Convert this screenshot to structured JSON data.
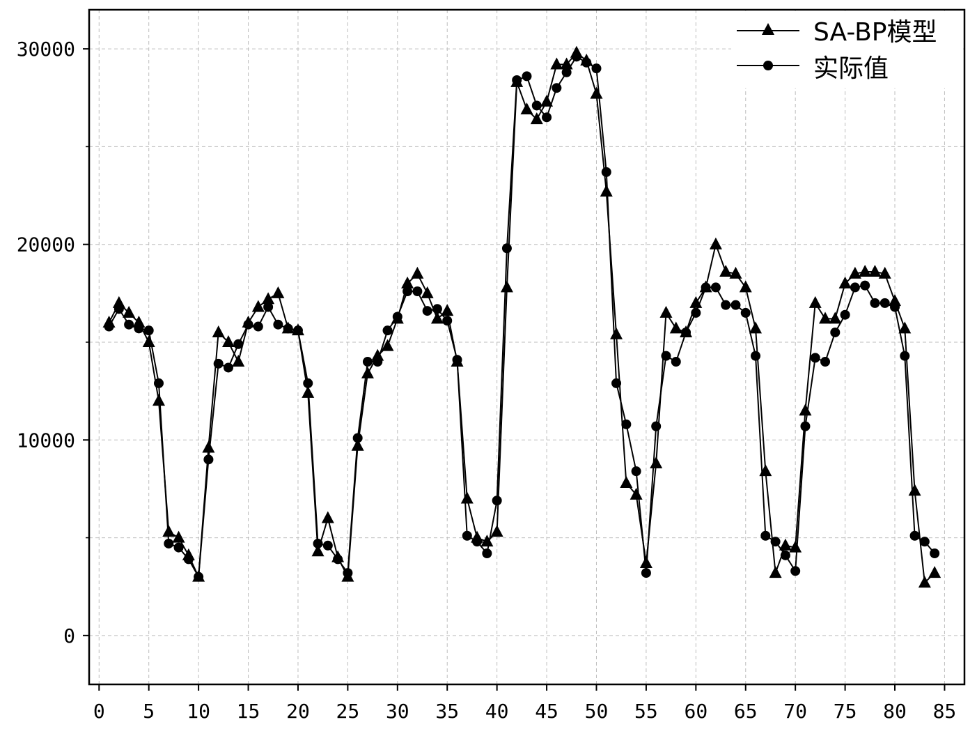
{
  "chart_data": {
    "type": "line",
    "title": "",
    "xlabel": "",
    "ylabel": "",
    "xlim": [
      -1,
      87
    ],
    "ylim": [
      -2500,
      32000
    ],
    "grid": true,
    "legend_position": "top-right",
    "x_ticks": [
      0,
      5,
      10,
      15,
      20,
      25,
      30,
      35,
      40,
      45,
      50,
      55,
      60,
      65,
      70,
      75,
      80,
      85
    ],
    "x_tick_labels": [
      "0",
      "5",
      "10",
      "15",
      "20",
      "25",
      "30",
      "35",
      "40",
      "45",
      "50",
      "55",
      "60",
      "65",
      "70",
      "75",
      "80",
      "85"
    ],
    "y_ticks": [
      0,
      10000,
      20000,
      30000
    ],
    "y_tick_labels": [
      "0",
      "10000",
      "20000",
      "30000"
    ],
    "y_minor_ticks": [
      5000,
      15000,
      25000
    ],
    "x": [
      1,
      2,
      3,
      4,
      5,
      6,
      7,
      8,
      9,
      10,
      11,
      12,
      13,
      14,
      15,
      16,
      17,
      18,
      19,
      20,
      21,
      22,
      23,
      24,
      25,
      26,
      27,
      28,
      29,
      30,
      31,
      32,
      33,
      34,
      35,
      36,
      37,
      38,
      39,
      40,
      41,
      42,
      43,
      44,
      45,
      46,
      47,
      48,
      49,
      50,
      51,
      52,
      53,
      54,
      55,
      56,
      57,
      58,
      59,
      60,
      61,
      62,
      63,
      64,
      65,
      66,
      67,
      68,
      69,
      70,
      71,
      72,
      73,
      74,
      75,
      76,
      77,
      78,
      79,
      80,
      81,
      82,
      83,
      84
    ],
    "series": [
      {
        "name": "SA-BP模型",
        "marker": "triangle",
        "color": "#000000",
        "values": [
          16000,
          17000,
          16500,
          16000,
          15000,
          12000,
          5300,
          5000,
          4100,
          3000,
          9600,
          15500,
          15000,
          14000,
          16000,
          16800,
          17200,
          17500,
          15700,
          15600,
          12400,
          4300,
          6000,
          4000,
          3000,
          9700,
          13400,
          14300,
          14800,
          16200,
          18000,
          18500,
          17500,
          16200,
          16600,
          14000,
          7000,
          5000,
          4800,
          5300,
          17800,
          28300,
          26900,
          26400,
          27300,
          29200,
          29200,
          29800,
          29400,
          27700,
          22700,
          15400,
          7800,
          7200,
          3700,
          8800,
          16500,
          15700,
          15500,
          17000,
          17800,
          20000,
          18600,
          18500,
          17800,
          15700,
          8400,
          3200,
          4600,
          4500,
          11500,
          17000,
          16200,
          16200,
          18000,
          18500,
          18600,
          18600,
          18500,
          17100,
          15700,
          7400,
          2700,
          3200
        ]
      },
      {
        "name": "实际值",
        "marker": "circle",
        "color": "#000000",
        "values": [
          15800,
          16700,
          15900,
          15700,
          15600,
          12900,
          4700,
          4500,
          3900,
          3000,
          9000,
          13900,
          13700,
          14900,
          15900,
          15800,
          16800,
          15900,
          15700,
          15600,
          12900,
          4700,
          4600,
          3900,
          3200,
          10100,
          14000,
          14000,
          15600,
          16300,
          17600,
          17600,
          16600,
          16700,
          16100,
          14100,
          5100,
          4800,
          4200,
          6900,
          19800,
          28400,
          28600,
          27100,
          26500,
          28000,
          28800,
          29600,
          29300,
          29000,
          23700,
          12900,
          10800,
          8400,
          3200,
          10700,
          14300,
          14000,
          15500,
          16500,
          17800,
          17800,
          16900,
          16900,
          16500,
          14300,
          5100,
          4800,
          4100,
          3300,
          10700,
          14200,
          14000,
          15500,
          16400,
          17800,
          17900,
          17000,
          17000,
          16800,
          14300,
          5100,
          4800,
          4200
        ]
      }
    ]
  }
}
